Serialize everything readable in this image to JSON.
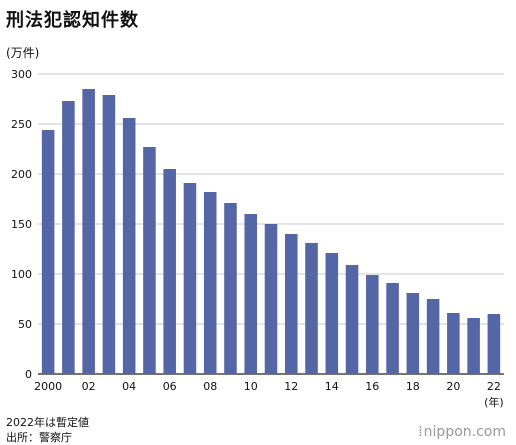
{
  "title": "刑法犯認知件数",
  "notes": [
    "2022年は暫定値",
    "出所：警察庁"
  ],
  "brand": {
    "dots": "⁞",
    "name": "nippon.com"
  },
  "chart_data": {
    "type": "bar",
    "title": "刑法犯認知件数",
    "ylabel": "(万件)",
    "xlabel": "(年)",
    "ylim": [
      0,
      300
    ],
    "yticks": [
      0,
      50,
      100,
      150,
      200,
      250,
      300
    ],
    "grid": true,
    "bar_color": "#5566a6",
    "categories": [
      "2000",
      "2001",
      "2002",
      "2003",
      "2004",
      "2005",
      "2006",
      "2007",
      "2008",
      "2009",
      "2010",
      "2011",
      "2012",
      "2013",
      "2014",
      "2015",
      "2016",
      "2017",
      "2018",
      "2019",
      "2020",
      "2021",
      "2022"
    ],
    "tick_labels": [
      "2000",
      "",
      "02",
      "",
      "04",
      "",
      "06",
      "",
      "08",
      "",
      "10",
      "",
      "12",
      "",
      "14",
      "",
      "16",
      "",
      "18",
      "",
      "20",
      "",
      "22"
    ],
    "values": [
      244,
      273,
      285,
      279,
      256,
      227,
      205,
      191,
      182,
      171,
      160,
      150,
      140,
      131,
      121,
      109,
      99,
      91,
      81,
      75,
      61,
      56,
      60
    ]
  }
}
